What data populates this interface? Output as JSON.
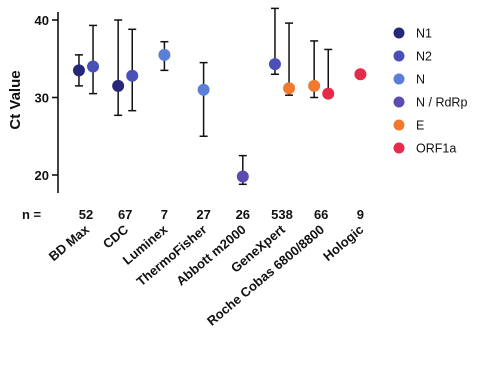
{
  "chart_data": {
    "type": "scatter",
    "ylabel": "Ct Value",
    "ylim": [
      17,
      42
    ],
    "yticks": [
      20,
      30,
      40
    ],
    "n_prefix": "n =",
    "categories": [
      "BD Max",
      "CDC",
      "Luminex",
      "ThermoFisher",
      "Abbott m2000",
      "GeneXpert",
      "Roche Cobas 6800/8800",
      "Hologic"
    ],
    "n_values": [
      "52",
      "67",
      "7",
      "27",
      "26",
      "538",
      "66",
      "9"
    ],
    "legend_position": "right",
    "grid": false,
    "series": [
      {
        "name": "N1",
        "color": "#27277a"
      },
      {
        "name": "N2",
        "color": "#4a50b8"
      },
      {
        "name": "N",
        "color": "#5c7fd6"
      },
      {
        "name": "N / RdRp",
        "color": "#5c4bb0"
      },
      {
        "name": "E",
        "color": "#ef7a2f"
      },
      {
        "name": "ORF1a",
        "color": "#e52a4a"
      }
    ],
    "points": [
      {
        "category": "BD Max",
        "offset": -0.32,
        "series": "N1",
        "y": 33.5,
        "low": 31.5,
        "high": 35.5
      },
      {
        "category": "BD Max",
        "offset": 0.32,
        "series": "N2",
        "y": 34.0,
        "low": 30.5,
        "high": 39.3
      },
      {
        "category": "CDC",
        "offset": -0.32,
        "series": "N1",
        "y": 31.5,
        "low": 27.7,
        "high": 40.0
      },
      {
        "category": "CDC",
        "offset": 0.32,
        "series": "N2",
        "y": 32.8,
        "low": 28.3,
        "high": 38.8
      },
      {
        "category": "Luminex",
        "offset": 0,
        "series": "N",
        "y": 35.5,
        "low": 33.5,
        "high": 37.2
      },
      {
        "category": "ThermoFisher",
        "offset": 0,
        "series": "N",
        "y": 31.0,
        "low": 25.0,
        "high": 34.5
      },
      {
        "category": "Abbott m2000",
        "offset": 0,
        "series": "N / RdRp",
        "y": 19.8,
        "low": 18.8,
        "high": 22.5
      },
      {
        "category": "GeneXpert",
        "offset": -0.32,
        "series": "N2",
        "y": 34.3,
        "low": 33.0,
        "high": 41.5
      },
      {
        "category": "GeneXpert",
        "offset": 0.32,
        "series": "E",
        "y": 31.2,
        "low": 30.3,
        "high": 39.6
      },
      {
        "category": "Roche Cobas 6800/8800",
        "offset": -0.32,
        "series": "E",
        "y": 31.5,
        "low": 30.0,
        "high": 37.3
      },
      {
        "category": "Roche Cobas 6800/8800",
        "offset": 0.32,
        "series": "ORF1a",
        "y": 30.5,
        "low": 30.0,
        "high": 36.2
      },
      {
        "category": "Hologic",
        "offset": 0,
        "series": "ORF1a",
        "y": 33.0,
        "low": 33.0,
        "high": 33.0
      }
    ]
  }
}
